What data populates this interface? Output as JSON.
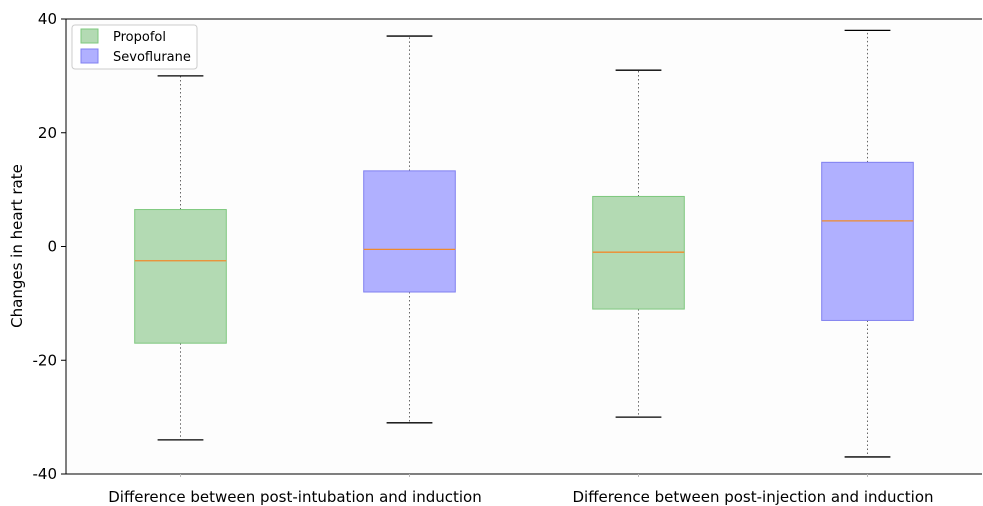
{
  "chart_data": {
    "type": "boxplot",
    "ylabel": "Changes in heart rate",
    "ylim": [
      -40,
      40
    ],
    "yticks": [
      -40,
      -20,
      0,
      20,
      40
    ],
    "grid": false,
    "legend_position": "top-left",
    "categories": [
      "Difference between post-intubation and induction",
      "Difference between post-injection and induction"
    ],
    "series": [
      {
        "name": "Propofol",
        "color": "#b3dab3",
        "edge_color": "#7ec87e",
        "boxes": [
          {
            "whisker_low": -34,
            "q1": -17,
            "median": -2.5,
            "q3": 6.5,
            "whisker_high": 30
          },
          {
            "whisker_low": -30,
            "q1": -11,
            "median": -1,
            "q3": 8.8,
            "whisker_high": 31
          }
        ]
      },
      {
        "name": "Sevoflurane",
        "color": "#b0b0ff",
        "edge_color": "#8080f0",
        "boxes": [
          {
            "whisker_low": -31,
            "q1": -8,
            "median": -0.5,
            "q3": 13.3,
            "whisker_high": 37
          },
          {
            "whisker_low": -37,
            "q1": -13,
            "median": 4.5,
            "q3": 14.8,
            "whisker_high": 38
          }
        ]
      }
    ],
    "median_color": "#f08a2c"
  }
}
